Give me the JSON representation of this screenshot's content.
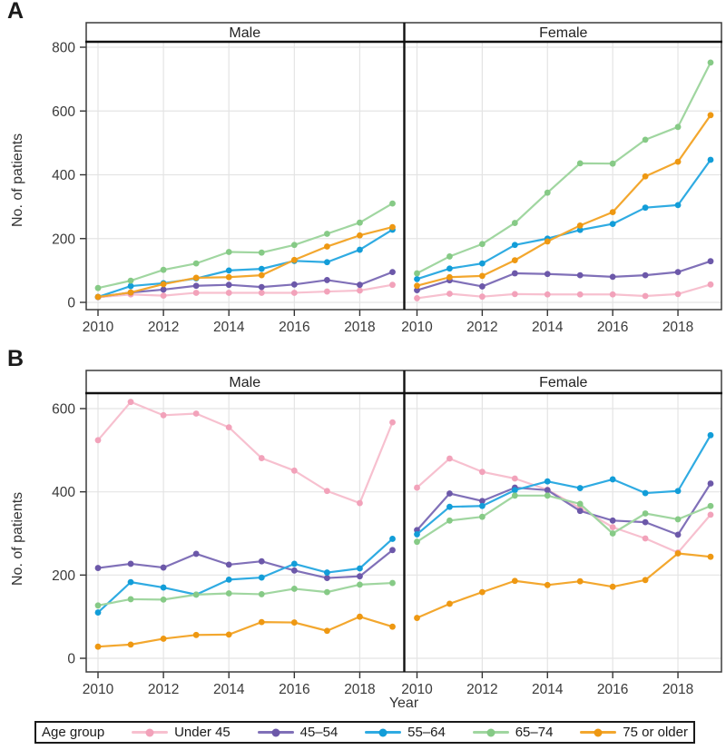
{
  "figure": {
    "y_axis_label": "No. of patients",
    "x_axis_label": "Year",
    "legend": {
      "title": "Age group",
      "items": [
        {
          "label": "Under 45",
          "line_color": "#F7C0CF",
          "marker_color": "#F2A2BA"
        },
        {
          "label": "45–54",
          "line_color": "#8070B8",
          "marker_color": "#6C58A9"
        },
        {
          "label": "55–64",
          "line_color": "#2FABE2",
          "marker_color": "#129DD8"
        },
        {
          "label": "65–74",
          "line_color": "#A0D6A0",
          "marker_color": "#86CA86"
        },
        {
          "label": "75 or older",
          "line_color": "#F3A72E",
          "marker_color": "#EE9812"
        }
      ]
    },
    "panels": [
      {
        "letter": "A",
        "y_ticks": [
          0,
          200,
          400,
          600,
          800
        ],
        "x_ticks": [
          2010,
          2012,
          2014,
          2016,
          2018
        ]
      },
      {
        "letter": "B",
        "y_ticks": [
          0,
          200,
          400,
          600
        ],
        "x_ticks": [
          2010,
          2012,
          2014,
          2016,
          2018
        ]
      }
    ]
  },
  "chart_data": [
    {
      "type": "line",
      "panel": "A",
      "x": [
        2010,
        2011,
        2012,
        2013,
        2014,
        2015,
        2016,
        2017,
        2018,
        2019
      ],
      "xlabel": "Year",
      "ylabel": "No. of patients",
      "ylim": [
        0,
        800
      ],
      "grid": true,
      "facets": [
        {
          "name": "Male",
          "series": [
            {
              "name": "Under 45",
              "values": [
                16,
                25,
                21,
                30,
                30,
                30,
                30,
                34,
                37,
                55
              ]
            },
            {
              "name": "45–54",
              "values": [
                17,
                31,
                40,
                52,
                55,
                48,
                56,
                70,
                55,
                95
              ]
            },
            {
              "name": "55–64",
              "values": [
                17,
                51,
                60,
                75,
                100,
                105,
                130,
                126,
                165,
                228
              ]
            },
            {
              "name": "65–74",
              "values": [
                45,
                68,
                102,
                122,
                158,
                156,
                180,
                215,
                250,
                310
              ]
            },
            {
              "name": "75 or older",
              "values": [
                17,
                31,
                57,
                77,
                79,
                85,
                133,
                175,
                210,
                236
              ]
            }
          ]
        },
        {
          "name": "Female",
          "series": [
            {
              "name": "Under 45",
              "values": [
                13,
                27,
                18,
                26,
                25,
                25,
                25,
                20,
                26,
                56
              ]
            },
            {
              "name": "45–54",
              "values": [
                38,
                69,
                50,
                91,
                89,
                85,
                80,
                85,
                95,
                129
              ]
            },
            {
              "name": "55–64",
              "values": [
                73,
                106,
                122,
                180,
                200,
                227,
                246,
                297,
                305,
                447
              ]
            },
            {
              "name": "65–74",
              "values": [
                91,
                144,
                183,
                249,
                344,
                436,
                435,
                510,
                550,
                752
              ]
            },
            {
              "name": "75 or older",
              "values": [
                52,
                79,
                83,
                132,
                191,
                241,
                283,
                395,
                441,
                587
              ]
            }
          ]
        }
      ]
    },
    {
      "type": "line",
      "panel": "B",
      "x": [
        2010,
        2011,
        2012,
        2013,
        2014,
        2015,
        2016,
        2017,
        2018,
        2019
      ],
      "xlabel": "Year",
      "ylabel": "No. of patients",
      "ylim": [
        0,
        600
      ],
      "grid": true,
      "facets": [
        {
          "name": "Male",
          "series": [
            {
              "name": "Under 45",
              "values": [
                524,
                616,
                584,
                588,
                555,
                481,
                451,
                402,
                373,
                567
              ]
            },
            {
              "name": "45–54",
              "values": [
                217,
                227,
                218,
                251,
                225,
                233,
                211,
                193,
                197,
                260
              ]
            },
            {
              "name": "55–64",
              "values": [
                110,
                183,
                170,
                153,
                189,
                194,
                227,
                206,
                216,
                287
              ]
            },
            {
              "name": "65–74",
              "values": [
                127,
                142,
                141,
                153,
                156,
                154,
                167,
                159,
                177,
                181
              ]
            },
            {
              "name": "75 or older",
              "values": [
                28,
                33,
                47,
                56,
                57,
                87,
                86,
                66,
                100,
                76
              ]
            }
          ]
        },
        {
          "name": "Female",
          "series": [
            {
              "name": "Under 45",
              "values": [
                410,
                480,
                448,
                432,
                405,
                361,
                315,
                288,
                254,
                345
              ]
            },
            {
              "name": "45–54",
              "values": [
                308,
                396,
                378,
                410,
                404,
                354,
                331,
                327,
                297,
                420
              ]
            },
            {
              "name": "55–64",
              "values": [
                298,
                364,
                366,
                404,
                425,
                409,
                430,
                397,
                402,
                536
              ]
            },
            {
              "name": "65–74",
              "values": [
                280,
                331,
                340,
                391,
                391,
                371,
                300,
                348,
                334,
                366
              ]
            },
            {
              "name": "75 or older",
              "values": [
                97,
                131,
                159,
                186,
                176,
                185,
                172,
                188,
                252,
                244
              ]
            }
          ]
        }
      ]
    }
  ]
}
